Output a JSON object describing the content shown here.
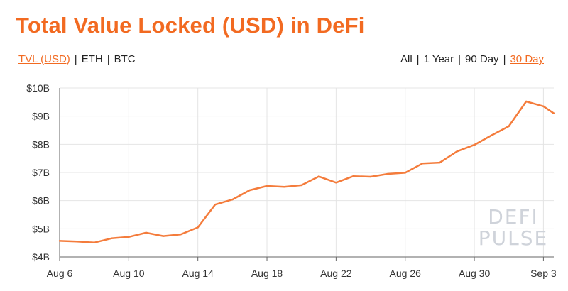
{
  "title": "Total Value Locked (USD) in DeFi",
  "currency_options": [
    {
      "label": "TVL (USD)",
      "active": true
    },
    {
      "label": "ETH",
      "active": false
    },
    {
      "label": "BTC",
      "active": false
    }
  ],
  "range_options": [
    {
      "label": "All",
      "active": false
    },
    {
      "label": "1 Year",
      "active": false
    },
    {
      "label": "90 Day",
      "active": false
    },
    {
      "label": "30 Day",
      "active": true
    }
  ],
  "separator": "|",
  "watermark": [
    "DEFI",
    "PULSE"
  ],
  "colors": {
    "accent": "#f26a21",
    "line": "#f47c3c",
    "grid": "#e4e4e4"
  },
  "chart_data": {
    "type": "line",
    "title": "Total Value Locked (USD) in DeFi",
    "xlabel": "",
    "ylabel": "",
    "ylim": [
      4,
      10
    ],
    "y_ticks": [
      4,
      5,
      6,
      7,
      8,
      9,
      10
    ],
    "y_tick_labels": [
      "$4B",
      "$5B",
      "$6B",
      "$7B",
      "$8B",
      "$9B",
      "$10B"
    ],
    "x_ticks": [
      {
        "label": "Aug 6",
        "day": 6
      },
      {
        "label": "Aug 10",
        "day": 10
      },
      {
        "label": "Aug 14",
        "day": 14
      },
      {
        "label": "Aug 18",
        "day": 18
      },
      {
        "label": "Aug 22",
        "day": 22
      },
      {
        "label": "Aug 26",
        "day": 26
      },
      {
        "label": "Aug 30",
        "day": 30
      },
      {
        "label": "Sep 3",
        "day": 34
      }
    ],
    "x_unit": "day of August (Sep 1 = 32)",
    "grid": true,
    "series": [
      {
        "values": [
          {
            "x": 6,
            "y": 4.57
          },
          {
            "x": 7,
            "y": 4.55
          },
          {
            "x": 8,
            "y": 4.51
          },
          {
            "x": 9,
            "y": 4.66
          },
          {
            "x": 10,
            "y": 4.71
          },
          {
            "x": 11,
            "y": 4.86
          },
          {
            "x": 12,
            "y": 4.74
          },
          {
            "x": 13,
            "y": 4.8
          },
          {
            "x": 14,
            "y": 5.05
          },
          {
            "x": 15,
            "y": 5.86
          },
          {
            "x": 16,
            "y": 6.04
          },
          {
            "x": 17,
            "y": 6.37
          },
          {
            "x": 18,
            "y": 6.52
          },
          {
            "x": 19,
            "y": 6.49
          },
          {
            "x": 20,
            "y": 6.55
          },
          {
            "x": 21,
            "y": 6.86
          },
          {
            "x": 22,
            "y": 6.64
          },
          {
            "x": 23,
            "y": 6.87
          },
          {
            "x": 24,
            "y": 6.85
          },
          {
            "x": 25,
            "y": 6.95
          },
          {
            "x": 26,
            "y": 6.99
          },
          {
            "x": 27,
            "y": 7.32
          },
          {
            "x": 28,
            "y": 7.35
          },
          {
            "x": 29,
            "y": 7.75
          },
          {
            "x": 30,
            "y": 7.98
          },
          {
            "x": 31,
            "y": 8.32
          },
          {
            "x": 32,
            "y": 8.64
          },
          {
            "x": 33,
            "y": 9.52
          },
          {
            "x": 34,
            "y": 9.35
          },
          {
            "x": 34.6,
            "y": 9.1
          }
        ]
      }
    ]
  }
}
